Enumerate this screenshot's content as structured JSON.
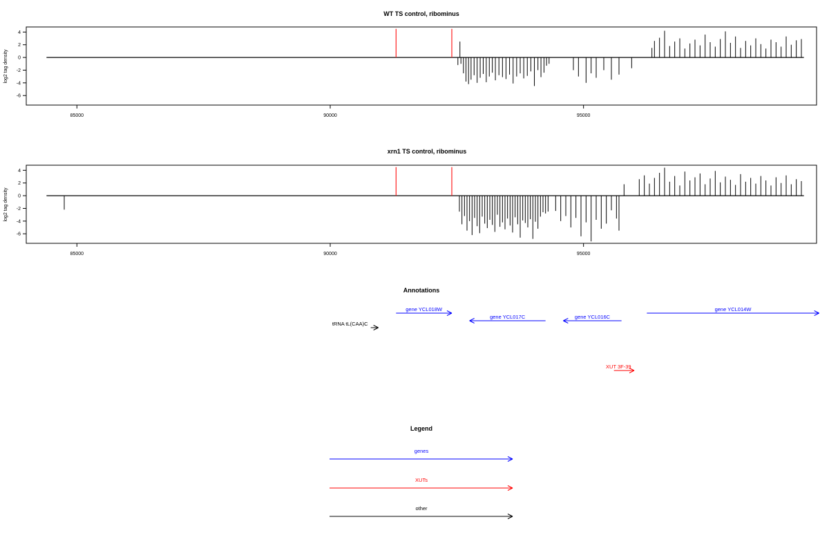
{
  "colors": {
    "axis": "#000000",
    "signal": "#000000",
    "marker": "#ff3030",
    "gene": "#0000ff",
    "xut": "#ff0000",
    "other": "#000000"
  },
  "chart_data": [
    {
      "type": "bar",
      "title": "WT TS control, ribominus",
      "ylabel": "log2 tag density",
      "xlim": [
        84000,
        99600
      ],
      "ylim": [
        -7.5,
        4.8
      ],
      "xticks": [
        85000,
        90000,
        95000
      ],
      "xtick_labels": [
        "85000",
        "90000",
        "95000"
      ],
      "yticks": [
        4,
        2,
        0,
        -2,
        -4,
        -6
      ],
      "ytick_labels": [
        "4",
        "2",
        "0",
        "-2",
        "-4",
        "-6"
      ],
      "baseline": {
        "x_start": 84400,
        "x_end": 99350,
        "y": 0
      },
      "markers": [
        {
          "x": 91300,
          "color": "#ff3030"
        },
        {
          "x": 92400,
          "color": "#ff3030"
        }
      ],
      "series": [
        {
          "x": [
            92520,
            92560,
            92580,
            92630,
            92680,
            92730,
            92780,
            92840,
            92900,
            92960,
            93020,
            93080,
            93140,
            93200,
            93260,
            93330,
            93400,
            93470,
            93540,
            93610,
            93680,
            93750,
            93820,
            93890,
            93960,
            94030,
            94100,
            94160,
            94220,
            94270,
            94320,
            94800,
            94900,
            95050,
            95150,
            95250,
            95400,
            95550,
            95700,
            95950,
            96350,
            96400,
            96500,
            96600,
            96700,
            96800,
            96900,
            97000,
            97100,
            97200,
            97300,
            97400,
            97500,
            97600,
            97700,
            97800,
            97900,
            98000,
            98100,
            98200,
            98300,
            98400,
            98500,
            98600,
            98700,
            98800,
            98900,
            99000,
            99100,
            99200,
            99300
          ],
          "values": [
            -1.2,
            2.5,
            -1.0,
            -2.5,
            -3.8,
            -4.2,
            -3.5,
            -2.8,
            -4.0,
            -3.2,
            -2.6,
            -3.9,
            -3.0,
            -2.4,
            -3.6,
            -2.8,
            -3.1,
            -3.4,
            -2.7,
            -4.1,
            -3.0,
            -2.5,
            -3.3,
            -2.9,
            -2.2,
            -4.5,
            -2.0,
            -3.1,
            -2.4,
            -1.3,
            -1.0,
            -2.0,
            -3.0,
            -4.0,
            -2.5,
            -3.2,
            -2.0,
            -3.5,
            -2.7,
            -1.7,
            1.5,
            2.6,
            3.1,
            4.2,
            1.8,
            2.5,
            3.0,
            1.4,
            2.2,
            2.8,
            1.9,
            3.6,
            2.4,
            1.7,
            2.9,
            4.1,
            2.3,
            3.3,
            1.5,
            2.6,
            1.9,
            3.0,
            2.1,
            1.4,
            2.8,
            2.4,
            1.7,
            3.3,
            2.0,
            2.7,
            2.9
          ]
        }
      ]
    },
    {
      "type": "bar",
      "title": "xrn1 TS control, ribominus",
      "ylabel": "log2 tag density",
      "xlim": [
        84000,
        99600
      ],
      "ylim": [
        -7.5,
        4.8
      ],
      "xticks": [
        85000,
        90000,
        95000
      ],
      "xtick_labels": [
        "85000",
        "90000",
        "95000"
      ],
      "yticks": [
        4,
        2,
        0,
        -2,
        -4,
        -6
      ],
      "ytick_labels": [
        "4",
        "2",
        "0",
        "-2",
        "-4",
        "-6"
      ],
      "baseline": {
        "x_start": 84400,
        "x_end": 99350,
        "y": 0
      },
      "markers": [
        {
          "x": 91300,
          "color": "#ff3030"
        },
        {
          "x": 92400,
          "color": "#ff3030"
        }
      ],
      "series": [
        {
          "x": [
            84750,
            92550,
            92600,
            92650,
            92700,
            92750,
            92800,
            92850,
            92900,
            92950,
            93000,
            93050,
            93100,
            93150,
            93200,
            93250,
            93300,
            93350,
            93400,
            93450,
            93500,
            93550,
            93600,
            93650,
            93700,
            93750,
            93800,
            93850,
            93900,
            93950,
            94000,
            94050,
            94100,
            94150,
            94200,
            94250,
            94300,
            94450,
            94550,
            94650,
            94750,
            94850,
            94950,
            95050,
            95150,
            95250,
            95350,
            95450,
            95550,
            95650,
            95700,
            95800,
            96100,
            96200,
            96300,
            96400,
            96500,
            96600,
            96700,
            96800,
            96900,
            97000,
            97100,
            97200,
            97300,
            97400,
            97500,
            97600,
            97700,
            97800,
            97900,
            98000,
            98100,
            98200,
            98300,
            98400,
            98500,
            98600,
            98700,
            98800,
            98900,
            99000,
            99100,
            99200,
            99300
          ],
          "values": [
            -2.2,
            -2.5,
            -4.5,
            -3.2,
            -5.5,
            -4.0,
            -6.2,
            -3.5,
            -4.8,
            -5.9,
            -3.3,
            -4.4,
            -5.1,
            -3.8,
            -4.6,
            -5.7,
            -3.0,
            -4.9,
            -4.2,
            -5.3,
            -3.6,
            -4.7,
            -5.8,
            -3.4,
            -4.5,
            -6.6,
            -3.9,
            -4.3,
            -5.0,
            -3.7,
            -6.8,
            -4.1,
            -5.2,
            -3.3,
            -2.6,
            -2.8,
            -2.5,
            -2.4,
            -4.0,
            -3.2,
            -5.0,
            -3.5,
            -6.4,
            -4.2,
            -7.2,
            -3.8,
            -5.2,
            -4.4,
            -2.3,
            -3.6,
            -5.5,
            1.8,
            2.6,
            3.2,
            1.9,
            2.8,
            3.6,
            4.4,
            2.2,
            3.1,
            1.6,
            3.8,
            2.4,
            2.9,
            3.5,
            1.8,
            2.7,
            3.9,
            2.1,
            3.0,
            2.5,
            1.7,
            3.4,
            2.2,
            2.8,
            1.9,
            3.1,
            2.4,
            1.6,
            2.9,
            2.0,
            3.2,
            1.8,
            2.6,
            2.3
          ]
        }
      ]
    }
  ],
  "annotations": {
    "title": "Annotations",
    "features": [
      {
        "label": "gene YCL018W",
        "start": 91300,
        "end": 92400,
        "strand": "+",
        "kind": "gene"
      },
      {
        "label": "gene YCL017C",
        "start": 92750,
        "end": 94250,
        "strand": "-",
        "kind": "gene"
      },
      {
        "label": "gene YCL016C",
        "start": 94600,
        "end": 95750,
        "strand": "-",
        "kind": "gene"
      },
      {
        "label": "gene YCL014W",
        "start": 96250,
        "end": 99650,
        "strand": "+",
        "kind": "gene"
      },
      {
        "label": "tRNA tL(CAA)C",
        "start": 90800,
        "end": 90950,
        "strand": "+",
        "kind": "other"
      },
      {
        "label": "XUT 3F-39",
        "start": 95600,
        "end": 96000,
        "strand": "+",
        "kind": "xut"
      }
    ]
  },
  "legend": {
    "title": "Legend",
    "items": [
      {
        "label": "genes",
        "kind": "gene"
      },
      {
        "label": "XUTs",
        "kind": "xut"
      },
      {
        "label": "other",
        "kind": "other"
      }
    ]
  }
}
